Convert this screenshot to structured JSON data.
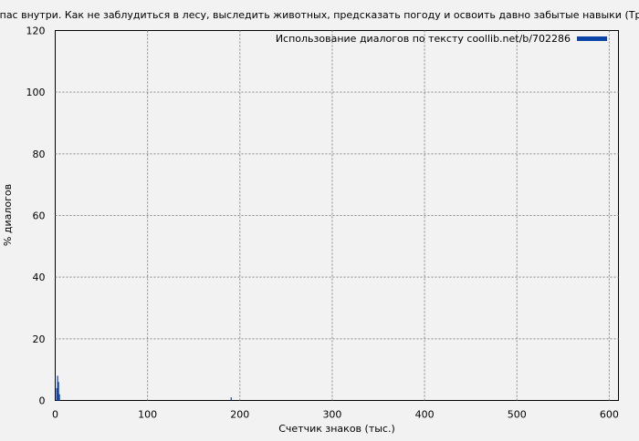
{
  "chart_data": {
    "type": "bar",
    "title": "компас внутри. Как не заблудиться в лесу, выследить животных, предсказать погоду и освоить давно забытые навыки (Трист",
    "xlabel": "Счетчик знаков (тыс.)",
    "ylabel": "% диалогов",
    "xlim": [
      0,
      610
    ],
    "ylim": [
      0,
      120
    ],
    "xticks": [
      0,
      100,
      200,
      300,
      400,
      500,
      600
    ],
    "yticks": [
      0,
      20,
      40,
      60,
      80,
      100,
      120
    ],
    "grid": true,
    "legend_placement": "top-right",
    "series": [
      {
        "name": "Использование диалогов по тексту coollib.net/b/702286",
        "color": "#0b45a8",
        "x": [
          1,
          2,
          3,
          4,
          190
        ],
        "values": [
          4,
          8,
          6,
          2,
          1
        ]
      }
    ]
  }
}
